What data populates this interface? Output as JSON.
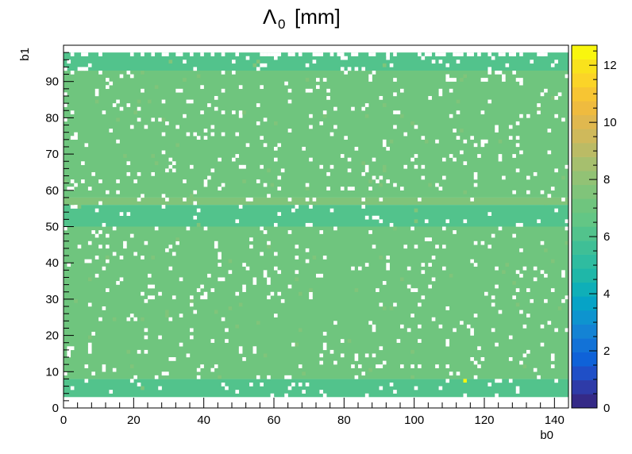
{
  "chart_data": {
    "type": "heatmap",
    "title": "Λ",
    "title_subscript": "0",
    "title_unit": "[mm]",
    "xlabel": "b0",
    "ylabel": "b1",
    "xlim": [
      0,
      144
    ],
    "ylim": [
      0,
      100
    ],
    "x_ticks": [
      "0",
      "20",
      "40",
      "60",
      "80",
      "100",
      "120",
      "140"
    ],
    "y_ticks": [
      "0",
      "10",
      "20",
      "30",
      "40",
      "50",
      "60",
      "70",
      "80",
      "90"
    ],
    "color_scale": {
      "min": 0,
      "max": 12.7,
      "ticks": [
        "0",
        "2",
        "4",
        "6",
        "8",
        "10",
        "12"
      ]
    },
    "x_bins": 144,
    "y_range_filled": [
      3,
      98
    ],
    "rows": [
      {
        "from": 3,
        "to": 8,
        "value": 6.1
      },
      {
        "from": 8,
        "to": 50,
        "value": 6.9
      },
      {
        "from": 50,
        "to": 56,
        "value": 6.1
      },
      {
        "from": 56,
        "to": 58,
        "value": 7.5
      },
      {
        "from": 58,
        "to": 93,
        "value": 6.9
      },
      {
        "from": 93,
        "to": 98,
        "value": 6.1
      }
    ],
    "hot_cell": {
      "x": 114,
      "y": 7,
      "value": 12.3
    },
    "palette": [
      "#352a87",
      "#2e3ba8",
      "#1f4fc7",
      "#0f62d8",
      "#1272d7",
      "#1483d4",
      "#0e94cf",
      "#06a3c6",
      "#0fafb8",
      "#1fb7a8",
      "#2fbca0",
      "#3fbf96",
      "#52c38c",
      "#63c685",
      "#6fc57e",
      "#80c47a",
      "#92c275",
      "#a6bf6e",
      "#bbbb65",
      "#cfb95b",
      "#e0b84f",
      "#efbb3f",
      "#f7c533",
      "#fbd428",
      "#f9e21c",
      "#f9f60e"
    ]
  }
}
